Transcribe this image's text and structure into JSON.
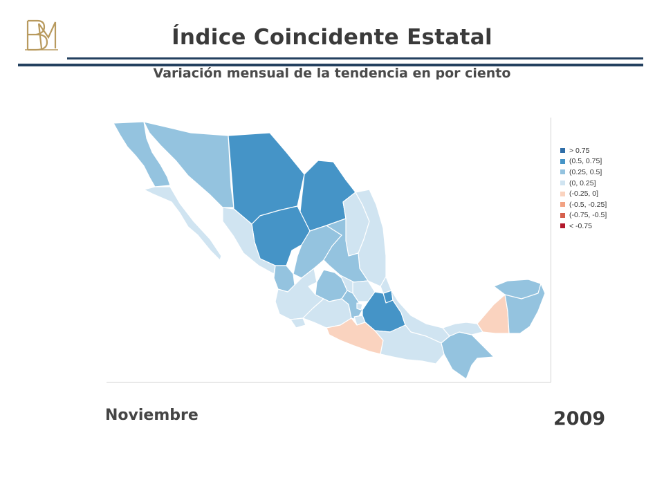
{
  "header": {
    "title": "Índice Coincidente Estatal",
    "subtitle": "Variación mensual de la tendencia en por ciento"
  },
  "period": {
    "month": "Noviembre",
    "year": "2009"
  },
  "colors": {
    "rule": "#23405f",
    "class_gt_075": "#2f6ea8",
    "class_050_075": "#4594c7",
    "class_025_050": "#94c3df",
    "class_000_025": "#d0e4f1",
    "class_m025_000": "#fad3bf",
    "class_m050_m025": "#f2a283",
    "class_m075_m050": "#d5604d",
    "class_lt_m075": "#b2182b"
  },
  "legend": {
    "items": [
      {
        "label": "> 0.75",
        "color": "#2f6ea8"
      },
      {
        "label": "(0.5,  0.75]",
        "color": "#4594c7"
      },
      {
        "label": "(0.25,  0.5]",
        "color": "#94c3df"
      },
      {
        "label": "(0,  0.25]",
        "color": "#d0e4f1"
      },
      {
        "label": "(-0.25,  0]",
        "color": "#fad3bf"
      },
      {
        "label": "(-0.5,  -0.25]",
        "color": "#f2a283"
      },
      {
        "label": "(-0.75,  -0.5]",
        "color": "#d5604d"
      },
      {
        "label": "< -0.75",
        "color": "#b2182b"
      }
    ]
  },
  "map_data": {
    "type": "choropleth",
    "regions": [
      {
        "id": "baja-california",
        "class": "(0.25,  0.5]",
        "color": "#94c3df"
      },
      {
        "id": "baja-california-sur",
        "class": "(0,  0.25]",
        "color": "#d0e4f1"
      },
      {
        "id": "sonora",
        "class": "(0.25,  0.5]",
        "color": "#94c3df"
      },
      {
        "id": "chihuahua",
        "class": "(0.5,  0.75]",
        "color": "#4594c7"
      },
      {
        "id": "coahuila",
        "class": "(0.5,  0.75]",
        "color": "#4594c7"
      },
      {
        "id": "durango",
        "class": "(0.5,  0.75]",
        "color": "#4594c7"
      },
      {
        "id": "sinaloa",
        "class": "(0,  0.25]",
        "color": "#d0e4f1"
      },
      {
        "id": "nuevo-leon",
        "class": "(0,  0.25]",
        "color": "#d0e4f1"
      },
      {
        "id": "tamaulipas",
        "class": "(0,  0.25]",
        "color": "#d0e4f1"
      },
      {
        "id": "zacatecas",
        "class": "(0.25,  0.5]",
        "color": "#94c3df"
      },
      {
        "id": "san-luis-potosi",
        "class": "(0.25,  0.5]",
        "color": "#94c3df"
      },
      {
        "id": "nayarit",
        "class": "(0.25,  0.5]",
        "color": "#94c3df"
      },
      {
        "id": "aguascalientes",
        "class": "(0.25,  0.5]",
        "color": "#94c3df"
      },
      {
        "id": "jalisco",
        "class": "(0,  0.25]",
        "color": "#d0e4f1"
      },
      {
        "id": "guanajuato",
        "class": "(0.25,  0.5]",
        "color": "#94c3df"
      },
      {
        "id": "queretaro",
        "class": "(0,  0.25]",
        "color": "#d0e4f1"
      },
      {
        "id": "hidalgo",
        "class": "(0,  0.25]",
        "color": "#d0e4f1"
      },
      {
        "id": "michoacan",
        "class": "(0,  0.25]",
        "color": "#d0e4f1"
      },
      {
        "id": "colima",
        "class": "(0,  0.25]",
        "color": "#d0e4f1"
      },
      {
        "id": "estado-de-mexico",
        "class": "(0.25,  0.5]",
        "color": "#94c3df"
      },
      {
        "id": "distrito-federal",
        "class": "(0,  0.25]",
        "color": "#d0e4f1"
      },
      {
        "id": "morelos",
        "class": "(0,  0.25]",
        "color": "#d0e4f1"
      },
      {
        "id": "tlaxcala",
        "class": "(0.5,  0.75]",
        "color": "#4594c7"
      },
      {
        "id": "puebla",
        "class": "(0.5,  0.75]",
        "color": "#4594c7"
      },
      {
        "id": "veracruz",
        "class": "(0,  0.25]",
        "color": "#d0e4f1"
      },
      {
        "id": "guerrero",
        "class": "(-0.25,  0]",
        "color": "#fad3bf"
      },
      {
        "id": "oaxaca",
        "class": "(0,  0.25]",
        "color": "#d0e4f1"
      },
      {
        "id": "chiapas",
        "class": "(0.25,  0.5]",
        "color": "#94c3df"
      },
      {
        "id": "tabasco",
        "class": "(0,  0.25]",
        "color": "#d0e4f1"
      },
      {
        "id": "campeche",
        "class": "(-0.25,  0]",
        "color": "#fad3bf"
      },
      {
        "id": "yucatan",
        "class": "(0.25,  0.5]",
        "color": "#94c3df"
      },
      {
        "id": "quintana-roo",
        "class": "(0.25,  0.5]",
        "color": "#94c3df"
      }
    ]
  }
}
